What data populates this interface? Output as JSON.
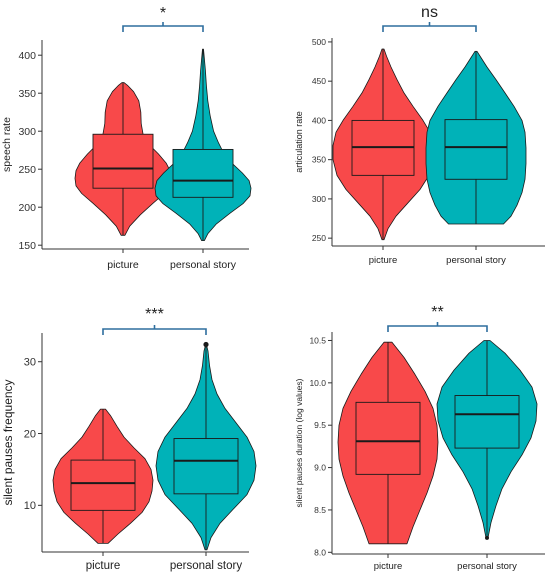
{
  "colors": {
    "picture": "#F8494A",
    "personal_story": "#00B2B8",
    "bracket": "#2E6E9E",
    "axis": "#333333"
  },
  "chart_data": [
    {
      "type": "violin",
      "ylabel": "speech rate",
      "ylim": [
        145,
        420
      ],
      "yticks": [
        150,
        200,
        250,
        300,
        350,
        400
      ],
      "categories": [
        "picture",
        "personal story"
      ],
      "significance": "*",
      "series": [
        {
          "category": "picture",
          "min": 163,
          "q1": 225,
          "median": 251,
          "q3": 296,
          "max": 364,
          "density": [
            [
              163,
              0.04
            ],
            [
              175,
              0.14
            ],
            [
              190,
              0.36
            ],
            [
              205,
              0.62
            ],
            [
              218,
              0.86
            ],
            [
              228,
              0.98
            ],
            [
              238,
              1.0
            ],
            [
              248,
              0.98
            ],
            [
              258,
              0.9
            ],
            [
              270,
              0.74
            ],
            [
              282,
              0.55
            ],
            [
              295,
              0.42
            ],
            [
              310,
              0.38
            ],
            [
              325,
              0.37
            ],
            [
              340,
              0.33
            ],
            [
              352,
              0.22
            ],
            [
              360,
              0.1
            ],
            [
              364,
              0.02
            ]
          ]
        },
        {
          "category": "personal story",
          "min": 156,
          "q1": 213,
          "median": 235,
          "q3": 276,
          "max": 408,
          "density": [
            [
              156,
              0.03
            ],
            [
              165,
              0.1
            ],
            [
              178,
              0.28
            ],
            [
              192,
              0.56
            ],
            [
              205,
              0.84
            ],
            [
              215,
              0.98
            ],
            [
              225,
              1.0
            ],
            [
              235,
              0.96
            ],
            [
              245,
              0.82
            ],
            [
              258,
              0.6
            ],
            [
              270,
              0.44
            ],
            [
              285,
              0.32
            ],
            [
              300,
              0.22
            ],
            [
              320,
              0.15
            ],
            [
              340,
              0.1
            ],
            [
              360,
              0.07
            ],
            [
              380,
              0.05
            ],
            [
              395,
              0.03
            ],
            [
              408,
              0.01
            ]
          ]
        }
      ]
    },
    {
      "type": "violin",
      "ylabel": "articulation rate",
      "ylim": [
        240,
        505
      ],
      "yticks": [
        250,
        300,
        350,
        400,
        450,
        500
      ],
      "categories": [
        "picture",
        "personal story"
      ],
      "significance": "ns",
      "series": [
        {
          "category": "picture",
          "min": 248,
          "q1": 330,
          "median": 366,
          "q3": 400,
          "max": 491,
          "density": [
            [
              248,
              0.02
            ],
            [
              262,
              0.1
            ],
            [
              278,
              0.26
            ],
            [
              295,
              0.5
            ],
            [
              312,
              0.74
            ],
            [
              330,
              0.92
            ],
            [
              350,
              1.0
            ],
            [
              368,
              1.0
            ],
            [
              385,
              0.94
            ],
            [
              400,
              0.8
            ],
            [
              418,
              0.6
            ],
            [
              435,
              0.42
            ],
            [
              452,
              0.28
            ],
            [
              468,
              0.16
            ],
            [
              482,
              0.07
            ],
            [
              491,
              0.02
            ]
          ]
        },
        {
          "category": "personal story",
          "min": 268,
          "q1": 325,
          "median": 366,
          "q3": 401,
          "max": 488,
          "density": [
            [
              268,
              0.55
            ],
            [
              278,
              0.7
            ],
            [
              292,
              0.82
            ],
            [
              308,
              0.92
            ],
            [
              325,
              0.98
            ],
            [
              345,
              1.0
            ],
            [
              365,
              1.0
            ],
            [
              385,
              0.98
            ],
            [
              400,
              0.92
            ],
            [
              418,
              0.76
            ],
            [
              435,
              0.58
            ],
            [
              452,
              0.4
            ],
            [
              468,
              0.22
            ],
            [
              480,
              0.1
            ],
            [
              488,
              0.02
            ]
          ]
        }
      ]
    },
    {
      "type": "violin",
      "ylabel": "silent pauses frequency",
      "ylim": [
        3.5,
        34
      ],
      "yticks": [
        10,
        20,
        30
      ],
      "categories": [
        "picture",
        "personal story"
      ],
      "significance": "***",
      "series": [
        {
          "category": "picture",
          "min": 4.7,
          "q1": 9.3,
          "median": 13.1,
          "q3": 16.3,
          "max": 23.4,
          "density": [
            [
              4.7,
              0.1
            ],
            [
              6,
              0.3
            ],
            [
              7.5,
              0.55
            ],
            [
              9,
              0.78
            ],
            [
              10.5,
              0.92
            ],
            [
              12,
              0.98
            ],
            [
              13.5,
              1.0
            ],
            [
              15,
              0.96
            ],
            [
              16.5,
              0.84
            ],
            [
              18,
              0.62
            ],
            [
              19.5,
              0.42
            ],
            [
              21,
              0.28
            ],
            [
              22.5,
              0.15
            ],
            [
              23.4,
              0.05
            ]
          ]
        },
        {
          "category": "personal story",
          "min": 3.8,
          "q1": 11.6,
          "median": 16.2,
          "q3": 19.3,
          "max": 32.3,
          "density": [
            [
              3.8,
              0.02
            ],
            [
              5.5,
              0.1
            ],
            [
              7.5,
              0.28
            ],
            [
              9.5,
              0.55
            ],
            [
              11.5,
              0.82
            ],
            [
              13.5,
              0.96
            ],
            [
              15.5,
              1.0
            ],
            [
              17.5,
              0.96
            ],
            [
              19.5,
              0.82
            ],
            [
              21.5,
              0.6
            ],
            [
              23.5,
              0.38
            ],
            [
              25.5,
              0.22
            ],
            [
              27.5,
              0.12
            ],
            [
              29.5,
              0.07
            ],
            [
              31.5,
              0.04
            ],
            [
              32.3,
              0.01
            ]
          ]
        }
      ]
    },
    {
      "type": "violin",
      "ylabel": "silent pauses duration (log values)",
      "ylim": [
        7.98,
        10.6
      ],
      "yticks": [
        8.0,
        8.5,
        9.0,
        9.5,
        10.0,
        10.5
      ],
      "categories": [
        "picture",
        "personal story"
      ],
      "significance": "**",
      "series": [
        {
          "category": "picture",
          "min": 8.1,
          "q1": 8.92,
          "median": 9.31,
          "q3": 9.77,
          "max": 10.48,
          "density": [
            [
              8.1,
              0.38
            ],
            [
              8.3,
              0.5
            ],
            [
              8.5,
              0.64
            ],
            [
              8.7,
              0.78
            ],
            [
              8.9,
              0.9
            ],
            [
              9.1,
              0.98
            ],
            [
              9.3,
              1.0
            ],
            [
              9.5,
              0.98
            ],
            [
              9.7,
              0.9
            ],
            [
              9.9,
              0.74
            ],
            [
              10.1,
              0.54
            ],
            [
              10.3,
              0.32
            ],
            [
              10.48,
              0.08
            ]
          ]
        },
        {
          "category": "personal story",
          "min": 8.17,
          "q1": 9.23,
          "median": 9.63,
          "q3": 9.85,
          "max": 10.5,
          "density": [
            [
              8.17,
              0.02
            ],
            [
              8.35,
              0.08
            ],
            [
              8.55,
              0.18
            ],
            [
              8.75,
              0.3
            ],
            [
              8.95,
              0.48
            ],
            [
              9.15,
              0.7
            ],
            [
              9.35,
              0.88
            ],
            [
              9.55,
              0.98
            ],
            [
              9.75,
              1.0
            ],
            [
              9.95,
              0.9
            ],
            [
              10.15,
              0.66
            ],
            [
              10.35,
              0.36
            ],
            [
              10.5,
              0.06
            ]
          ]
        }
      ]
    }
  ]
}
